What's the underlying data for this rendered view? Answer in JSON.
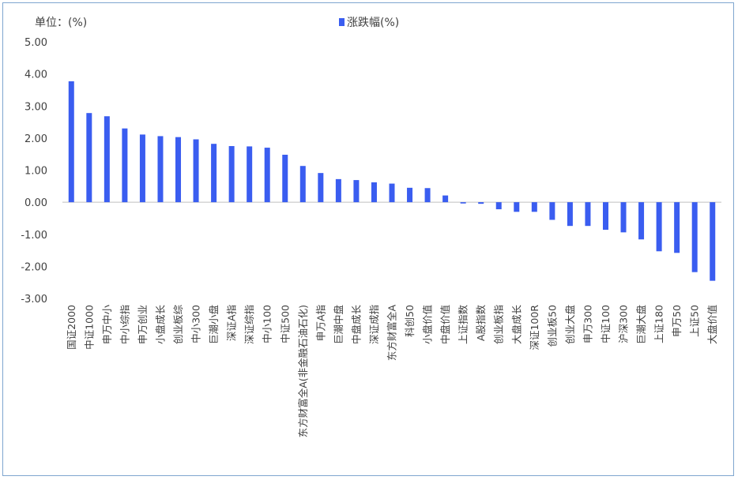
{
  "chart_data": {
    "type": "bar",
    "unit_label": "单位：(%)",
    "legend": "涨跌幅(%)",
    "legend_placement": "top-center",
    "series_color": "#3a5df0",
    "ylim": [
      -3.0,
      5.0
    ],
    "yticks": [
      "5.00",
      "4.00",
      "3.00",
      "2.00",
      "1.00",
      "0.00",
      "-1.00",
      "-2.00",
      "-3.00"
    ],
    "ytick_values": [
      5,
      4,
      3,
      2,
      1,
      0,
      -1,
      -2,
      -3
    ],
    "grid": false,
    "categories": [
      "国证2000",
      "中证1000",
      "申万中小",
      "中小综指",
      "申万创业",
      "小盘成长",
      "创业板综",
      "中小300",
      "巨潮小盘",
      "深证A指",
      "深证综指",
      "中小100",
      "中证500",
      "东方财富全A(非金融石油石化)",
      "申万A指",
      "巨潮中盘",
      "中盘成长",
      "深证成指",
      "东方财富全A",
      "科创50",
      "小盘价值",
      "中盘价值",
      "上证指数",
      "A股指数",
      "创业板指",
      "大盘成长",
      "深证100R",
      "创业板50",
      "创业大盘",
      "申万300",
      "中证100",
      "沪深300",
      "巨潮大盘",
      "上证180",
      "申万50",
      "上证50",
      "大盘价值"
    ],
    "values": [
      3.77,
      2.78,
      2.68,
      2.3,
      2.11,
      2.06,
      2.03,
      1.96,
      1.82,
      1.75,
      1.74,
      1.7,
      1.48,
      1.13,
      0.91,
      0.72,
      0.69,
      0.62,
      0.58,
      0.45,
      0.44,
      0.21,
      -0.04,
      -0.05,
      -0.22,
      -0.3,
      -0.3,
      -0.55,
      -0.74,
      -0.74,
      -0.86,
      -0.94,
      -1.16,
      -1.53,
      -1.58,
      -2.18,
      -2.45
    ]
  }
}
